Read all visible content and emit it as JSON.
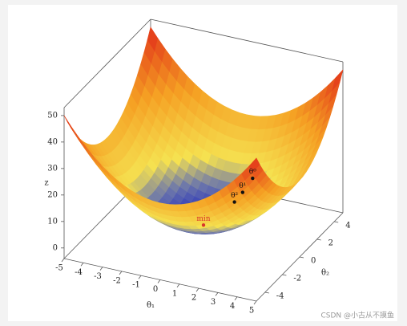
{
  "chart_data": {
    "type": "surface3d",
    "xlabel": "θ₁",
    "ylabel": "θ₂",
    "zlabel": "z",
    "xlim": [
      -5,
      5
    ],
    "ylim": [
      -5,
      5
    ],
    "zlim": [
      -4,
      53
    ],
    "xticks": [
      -5,
      -4,
      -3,
      -2,
      -1,
      0,
      1,
      2,
      3,
      4,
      5
    ],
    "yticks": [
      -4,
      -2,
      0,
      2,
      4
    ],
    "zticks": [
      0,
      10,
      20,
      30,
      40,
      50
    ],
    "points": [
      {
        "label": "min",
        "color": "#d9342b",
        "x": 0,
        "y": 0,
        "z": 0
      },
      {
        "label": "θ⁰",
        "color": "#111111",
        "x": 1.25,
        "y": 2.9,
        "z": 10
      },
      {
        "label": "θ¹",
        "color": "#111111",
        "x": 1,
        "y": 2.3,
        "z": 6.3
      },
      {
        "label": "θ²",
        "color": "#111111",
        "x": 0.8,
        "y": 1.8,
        "z": 4
      }
    ]
  },
  "watermark": "CSDN @小古从不摸鱼"
}
